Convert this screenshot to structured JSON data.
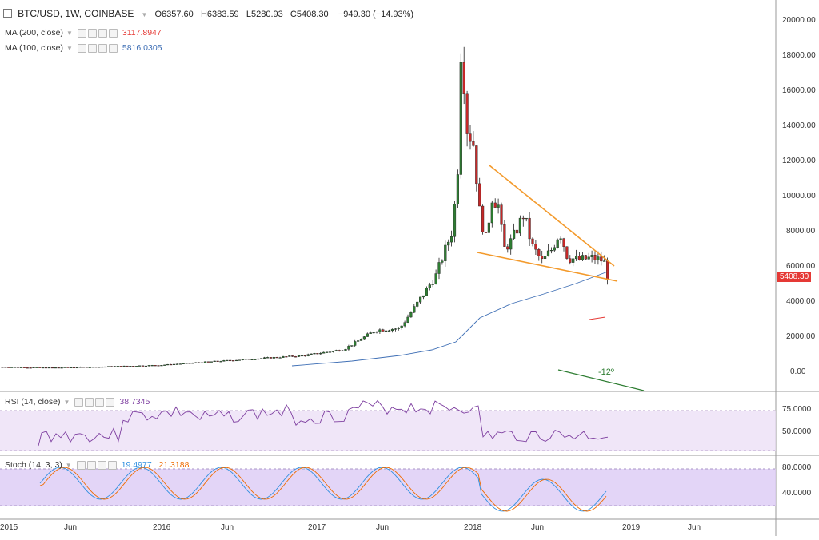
{
  "header": {
    "symbol": "BTC/USD, 1W, COINBASE",
    "open": "O6357.60",
    "high": "H6383.59",
    "low": "L5280.93",
    "close": "C5408.30",
    "change": "−949.30 (−14.93%)"
  },
  "indicators": {
    "ma200": {
      "label": "MA (200, close)",
      "value": "3117.8947",
      "color": "#e53935"
    },
    "ma100": {
      "label": "MA (100, close)",
      "value": "5816.0305",
      "color": "#3f6fb5"
    },
    "rsi": {
      "label": "RSI (14, close)",
      "value": "38.7345",
      "color": "#7e3fa0"
    },
    "stoch": {
      "label": "Stoch (14, 3, 3)",
      "k_value": "19.4977",
      "d_value": "21.3188",
      "k_color": "#2f8fe0",
      "d_color": "#ef6c00"
    }
  },
  "price_axis": {
    "ticks": [
      "20000.00",
      "18000.00",
      "16000.00",
      "14000.00",
      "12000.00",
      "10000.00",
      "8000.00",
      "6000.00",
      "4000.00",
      "2000.00",
      "0.00"
    ],
    "current": "5408.30"
  },
  "rsi_axis": {
    "ticks": [
      "75.0000",
      "50.0000"
    ]
  },
  "stoch_axis": {
    "ticks": [
      "80.0000",
      "40.0000"
    ]
  },
  "time_axis": {
    "labels": [
      "2015",
      "Jun",
      "2016",
      "Jun",
      "2017",
      "Jun",
      "2018",
      "Jun",
      "2019",
      "Jun"
    ]
  },
  "annotation": {
    "angle": "-12º"
  },
  "colors": {
    "up": "#2e7d32",
    "down": "#c62828",
    "trend": "#f39a2c"
  }
}
